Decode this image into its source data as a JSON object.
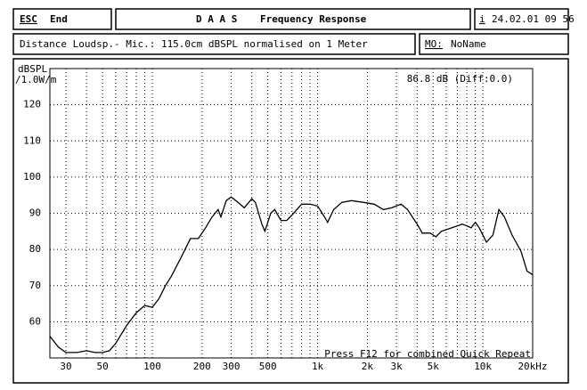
{
  "header": {
    "esc": "ESC",
    "end": "End",
    "app": "D A A S",
    "title": "Frequency Response",
    "info_key": "i",
    "datetime": "24.02.01 09 56"
  },
  "subheader": {
    "measurement": "Distance Loudsp.- Mic.: 115.0cm dBSPL normalised on 1 Meter",
    "mo_key": "MO:",
    "name": "NoName"
  },
  "chart_data": {
    "type": "line",
    "xscale": "log",
    "grid": true,
    "color": "#000000",
    "ylabel": [
      "dBSPL",
      "/1.0W/m"
    ],
    "annotations": [
      "86.8 dB (Diff:0.0)",
      "Press F12 for combined Quick Repeat"
    ],
    "xlim": [
      24,
      20000
    ],
    "ylim": [
      50,
      130
    ],
    "yticks": [
      60,
      70,
      80,
      90,
      100,
      110,
      120
    ],
    "xticks": [
      30,
      50,
      100,
      200,
      300,
      500,
      {
        "value": 1000,
        "label": "1k"
      },
      {
        "value": 2000,
        "label": "2k"
      },
      {
        "value": 3000,
        "label": "3k"
      },
      {
        "value": 5000,
        "label": "5k"
      },
      {
        "value": 10000,
        "label": "10k"
      },
      {
        "value": 20000,
        "label": "20kHz"
      }
    ],
    "xgrid": [
      30,
      40,
      50,
      60,
      70,
      80,
      90,
      100,
      200,
      300,
      400,
      500,
      600,
      700,
      800,
      900,
      1000,
      2000,
      3000,
      4000,
      5000,
      6000,
      7000,
      8000,
      9000,
      10000,
      20000
    ],
    "ygrid": [
      60,
      70,
      80,
      90,
      100,
      110,
      120,
      130
    ],
    "x": [
      24,
      27,
      30,
      35,
      40,
      45,
      50,
      55,
      60,
      70,
      80,
      90,
      100,
      110,
      120,
      130,
      150,
      170,
      190,
      210,
      230,
      250,
      260,
      280,
      300,
      330,
      360,
      400,
      420,
      460,
      480,
      520,
      550,
      600,
      650,
      700,
      800,
      900,
      1000,
      1100,
      1150,
      1250,
      1400,
      1600,
      1900,
      2200,
      2500,
      2800,
      3200,
      3500,
      4000,
      4300,
      4800,
      5200,
      5600,
      6500,
      7500,
      8500,
      9000,
      9500,
      10500,
      11500,
      12500,
      13500,
      15000,
      17000,
      18500,
      20000
    ],
    "values": [
      56,
      53,
      51.5,
      51.5,
      52,
      51.5,
      51.5,
      52,
      54,
      59,
      62.5,
      64.5,
      64,
      66.5,
      70,
      72.5,
      78,
      83,
      83,
      86,
      89,
      91,
      89,
      93.5,
      94.5,
      93,
      91.5,
      94,
      93,
      87,
      85,
      90,
      91,
      88,
      88,
      89.5,
      92.5,
      92.5,
      92,
      89,
      87.5,
      91,
      93,
      93.5,
      93,
      92.5,
      91,
      91.5,
      92.5,
      91,
      87,
      84.5,
      84.5,
      83.5,
      85,
      86,
      87,
      86,
      87.5,
      86,
      82,
      84,
      91,
      89,
      84,
      79.5,
      74,
      73
    ]
  }
}
